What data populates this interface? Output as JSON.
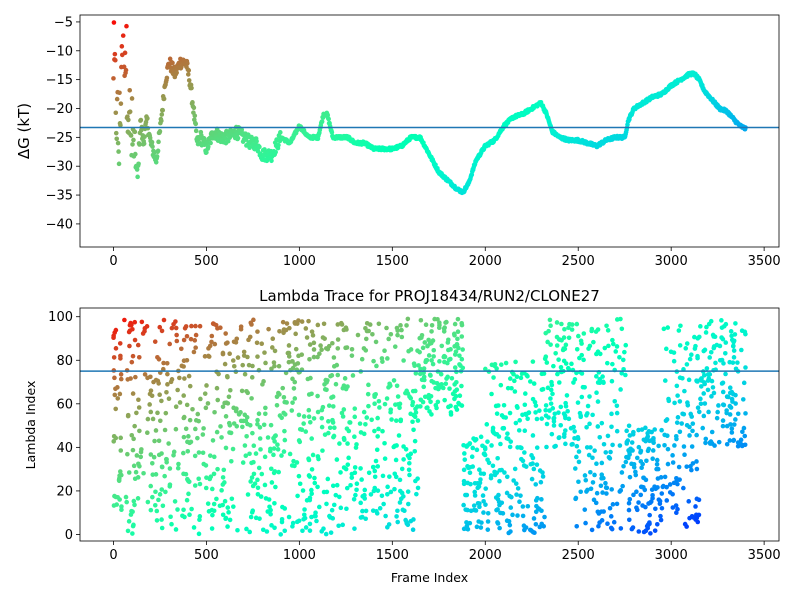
{
  "chart_data": [
    {
      "type": "scatter",
      "title": "",
      "xlabel": "",
      "ylabel": "ΔG (kT)",
      "xlim": [
        -180,
        3580
      ],
      "ylim": [
        -44,
        -3.8
      ],
      "xticks": [
        0,
        500,
        1000,
        1500,
        2000,
        2500,
        3000,
        3500
      ],
      "yticks": [
        -40,
        -35,
        -30,
        -25,
        -20,
        -15,
        -10,
        -5
      ],
      "reference_line": -23.3,
      "colormap": "rainbow (high values red at frame 0, purple at late frames)",
      "line_color": "#1f77b4",
      "trace_knots": {
        "x": [
          0,
          15,
          30,
          50,
          60,
          75,
          90,
          110,
          130,
          145,
          160,
          180,
          200,
          230,
          250,
          280,
          300,
          330,
          360,
          390,
          410,
          430,
          450,
          470,
          500,
          540,
          580,
          620,
          660,
          700,
          740,
          770,
          800,
          850,
          900,
          950,
          1000,
          1050,
          1100,
          1130,
          1150,
          1180,
          1220,
          1260,
          1300,
          1350,
          1400,
          1450,
          1500,
          1550,
          1600,
          1650,
          1700,
          1750,
          1800,
          1850,
          1880,
          1910,
          1950,
          2000,
          2050,
          2100,
          2150,
          2200,
          2250,
          2300,
          2330,
          2360,
          2400,
          2450,
          2500,
          2550,
          2600,
          2650,
          2700,
          2750,
          2770,
          2800,
          2850,
          2900,
          2950,
          3000,
          3050,
          3100,
          3125,
          3150,
          3180,
          3220,
          3260,
          3300,
          3340,
          3370,
          3400
        ],
        "y": [
          -12,
          -20,
          -27,
          -4,
          -8,
          -15,
          -24,
          -27,
          -32,
          -22,
          -26,
          -22,
          -26,
          -29,
          -24,
          -15,
          -12,
          -14,
          -12,
          -12,
          -15,
          -20,
          -26,
          -25,
          -27,
          -24,
          -25,
          -25,
          -24,
          -25,
          -26,
          -26,
          -28,
          -28,
          -25,
          -26,
          -23,
          -25,
          -25,
          -21,
          -21,
          -25,
          -25,
          -25,
          -26,
          -26,
          -27,
          -27,
          -27,
          -26.5,
          -25,
          -25,
          -28,
          -31,
          -32.5,
          -34,
          -34.5,
          -33,
          -29,
          -26.5,
          -25.5,
          -23,
          -21.5,
          -21,
          -20,
          -19,
          -21,
          -24,
          -25,
          -25.5,
          -25.5,
          -26,
          -26.5,
          -25.5,
          -25,
          -25,
          -22,
          -20,
          -19,
          -18,
          -17.5,
          -16,
          -15,
          -14,
          -14,
          -15,
          -17,
          -18.5,
          -20,
          -20.5,
          -22,
          -23,
          -23.5
        ]
      }
    },
    {
      "type": "scatter",
      "title": "Lambda Trace for PROJ18434/RUN2/CLONE27",
      "xlabel": "Frame Index",
      "ylabel": "Lambda Index",
      "xlim": [
        -180,
        3580
      ],
      "ylim": [
        -3,
        104
      ],
      "xticks": [
        0,
        500,
        1000,
        1500,
        2000,
        2500,
        3000,
        3500
      ],
      "yticks": [
        0,
        20,
        40,
        60,
        80,
        100
      ],
      "reference_line": 75,
      "colormap": "rainbow (high values red at frame 0, purple at late frames)",
      "line_color": "#1f77b4",
      "band_segments": [
        {
          "x": [
            0,
            300
          ],
          "lo": 0,
          "hi": 99
        },
        {
          "x": [
            300,
            1180
          ],
          "lo": 0,
          "hi": 99
        },
        {
          "x": [
            1180,
            1640
          ],
          "lo": 2,
          "hi": 99
        },
        {
          "x": [
            1640,
            1880
          ],
          "lo": 55,
          "hi": 99
        },
        {
          "x": [
            1880,
            2000
          ],
          "lo": 0,
          "hi": 45
        },
        {
          "x": [
            2000,
            2320
          ],
          "lo": 0,
          "hi": 80
        },
        {
          "x": [
            2320,
            2480
          ],
          "lo": 40,
          "hi": 99
        },
        {
          "x": [
            2480,
            2760
          ],
          "lo": 2,
          "hi": 99
        },
        {
          "x": [
            2760,
            2960
          ],
          "lo": 0,
          "hi": 50
        },
        {
          "x": [
            2960,
            3150
          ],
          "lo": 3,
          "hi": 97
        },
        {
          "x": [
            3150,
            3400
          ],
          "lo": 40,
          "hi": 99
        }
      ]
    }
  ]
}
